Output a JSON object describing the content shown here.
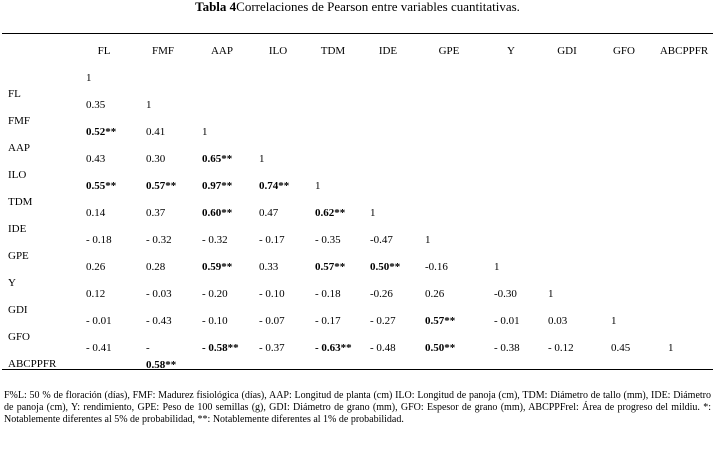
{
  "table": {
    "title_prefix": "Tabla 4",
    "title_rest": "Correlaciones de Pearson entre variables cuantitativas.",
    "columns": [
      "FL",
      "FMF",
      "AAP",
      "ILO",
      "TDM",
      "IDE",
      "GPE",
      "Y",
      "GDI",
      "GFO",
      "ABCPPFR"
    ],
    "row_labels": [
      "FL",
      "FMF",
      "AAP",
      "ILO",
      "TDM",
      "IDE",
      "GPE",
      "Y",
      "GDI",
      "GFO",
      "ABCPPFR"
    ],
    "rows": [
      [
        {
          "v": "1",
          "b": false
        }
      ],
      [
        {
          "v": "0.35",
          "b": false
        },
        {
          "v": "1",
          "b": false
        }
      ],
      [
        {
          "v": "0.52**",
          "b": true
        },
        {
          "v": "0.41",
          "b": false
        },
        {
          "v": "1",
          "b": false
        }
      ],
      [
        {
          "v": "0.43",
          "b": false
        },
        {
          "v": "0.30",
          "b": false
        },
        {
          "v": "0.65**",
          "b": true
        },
        {
          "v": "1",
          "b": false
        }
      ],
      [
        {
          "v": "0.55**",
          "b": true
        },
        {
          "v": "0.57**",
          "b": true
        },
        {
          "v": "0.97**",
          "b": true
        },
        {
          "v": "0.74**",
          "b": true
        },
        {
          "v": "1",
          "b": false
        }
      ],
      [
        {
          "v": "0.14",
          "b": false
        },
        {
          "v": "0.37",
          "b": false
        },
        {
          "v": "0.60**",
          "b": true
        },
        {
          "v": "0.47",
          "b": false
        },
        {
          "v": "0.62**",
          "b": true
        },
        {
          "v": "1",
          "b": false
        }
      ],
      [
        {
          "v": "- 0.18",
          "b": false
        },
        {
          "v": "- 0.32",
          "b": false
        },
        {
          "v": "-  0.32",
          "b": false
        },
        {
          "v": "- 0.17",
          "b": false
        },
        {
          "v": "- 0.35",
          "b": false
        },
        {
          "v": "-0.47",
          "b": false
        },
        {
          "v": "1",
          "b": false
        }
      ],
      [
        {
          "v": "0.26",
          "b": false
        },
        {
          "v": "0.28",
          "b": false
        },
        {
          "v": "0.59**",
          "b": true
        },
        {
          "v": "0.33",
          "b": false
        },
        {
          "v": "0.57**",
          "b": true
        },
        {
          "v": "0.50**",
          "b": true
        },
        {
          "v": "-0.16",
          "b": false
        },
        {
          "v": "1",
          "b": false
        }
      ],
      [
        {
          "v": "0.12",
          "b": false
        },
        {
          "v": "- 0.03",
          "b": false
        },
        {
          "v": "- 0.20",
          "b": false
        },
        {
          "v": "- 0.10",
          "b": false
        },
        {
          "v": "- 0.18",
          "b": false
        },
        {
          "v": "-0.26",
          "b": false
        },
        {
          "v": "0.26",
          "b": false
        },
        {
          "v": "-0.30",
          "b": false
        },
        {
          "v": "1",
          "b": false
        }
      ],
      [
        {
          "v": "- 0.01",
          "b": false
        },
        {
          "v": "- 0.43",
          "b": false
        },
        {
          "v": "- 0.10",
          "b": false
        },
        {
          "v": "- 0.07",
          "b": false
        },
        {
          "v": "- 0.17",
          "b": false
        },
        {
          "v": "- 0.27",
          "b": false
        },
        {
          "v": "0.57**",
          "b": true
        },
        {
          "v": "- 0.01",
          "b": false
        },
        {
          "v": "0.03",
          "b": false
        },
        {
          "v": "1",
          "b": false
        }
      ],
      [
        {
          "v": "- 0.41",
          "b": false
        },
        {
          "v": "-",
          "b": false
        },
        {
          "v": "- 0.58**",
          "b": true
        },
        {
          "v": "- 0.37",
          "b": false
        },
        {
          "v": "- 0.63**",
          "b": true
        },
        {
          "v": "- 0.48",
          "b": false
        },
        {
          "v": "0.50**",
          "b": true
        },
        {
          "v": "- 0.38",
          "b": false
        },
        {
          "v": "- 0.12",
          "b": false
        },
        {
          "v": "0.45",
          "b": false
        },
        {
          "v": "1",
          "b": false
        }
      ]
    ],
    "extra_cell": {
      "v": "0.58**",
      "b": true
    },
    "footnote": "F%L: 50 % de floración (días), FMF: Madurez fisiológica (días), AAP: Longitud de planta (cm) ILO: Longitud de panoja (cm), TDM: Diámetro de tallo (mm), IDE: Diámetro de panoja (cm), Y: rendimiento, GPE: Peso de 100 semillas (g), GDI: Diámetro de grano (mm), GFO: Espesor de grano (mm),    ABCPPFrel: Área de progreso del mildiu. *: Notablemente diferentes  al 5% de probabilidad, **: Notablemente diferentes al 1% de probabilidad."
  }
}
